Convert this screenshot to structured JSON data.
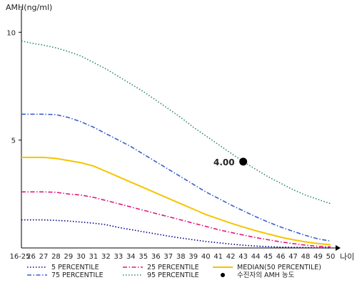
{
  "chart_data": {
    "type": "line",
    "ylabel": "AMH(ng/ml)",
    "xlabel": "나이",
    "categories": [
      "16-25",
      "26",
      "27",
      "28",
      "29",
      "30",
      "31",
      "32",
      "33",
      "34",
      "35",
      "36",
      "37",
      "38",
      "39",
      "40",
      "41",
      "42",
      "43",
      "44",
      "45",
      "46",
      "47",
      "48",
      "49",
      "50"
    ],
    "yticks": [
      5,
      10
    ],
    "ylim": [
      0,
      11
    ],
    "series": [
      {
        "name": "5 PERCENTILE",
        "color": "#00008b",
        "dash": "dot",
        "values": [
          1.3,
          1.3,
          1.3,
          1.28,
          1.25,
          1.2,
          1.15,
          1.08,
          0.95,
          0.85,
          0.75,
          0.65,
          0.55,
          0.46,
          0.38,
          0.3,
          0.24,
          0.18,
          0.13,
          0.09,
          0.06,
          0.04,
          0.03,
          0.02,
          0.01,
          0.0
        ]
      },
      {
        "name": "25 PERCENTILE",
        "color": "#e0197d",
        "dash": "dashdot",
        "values": [
          2.6,
          2.6,
          2.6,
          2.58,
          2.5,
          2.45,
          2.35,
          2.2,
          2.05,
          1.9,
          1.75,
          1.6,
          1.45,
          1.3,
          1.15,
          1.0,
          0.85,
          0.72,
          0.6,
          0.48,
          0.38,
          0.28,
          0.2,
          0.13,
          0.08,
          0.05
        ]
      },
      {
        "name": "MEDIAN(50 PERCENTILE)",
        "color": "#f5c400",
        "dash": "solid",
        "values": [
          4.2,
          4.2,
          4.2,
          4.15,
          4.05,
          3.95,
          3.8,
          3.55,
          3.3,
          3.05,
          2.8,
          2.55,
          2.3,
          2.05,
          1.8,
          1.55,
          1.35,
          1.15,
          0.97,
          0.8,
          0.65,
          0.5,
          0.38,
          0.28,
          0.2,
          0.15
        ]
      },
      {
        "name": "75 PERCENTILE",
        "color": "#3a5fcd",
        "dash": "dashdot",
        "values": [
          6.2,
          6.2,
          6.2,
          6.18,
          6.05,
          5.85,
          5.6,
          5.3,
          5.0,
          4.7,
          4.35,
          4.0,
          3.65,
          3.3,
          2.95,
          2.6,
          2.3,
          2.0,
          1.72,
          1.45,
          1.2,
          0.97,
          0.77,
          0.58,
          0.42,
          0.32
        ]
      },
      {
        "name": "95 PERCENTILE",
        "color": "#2e8b57",
        "dash": "dot",
        "values": [
          9.6,
          9.5,
          9.4,
          9.28,
          9.1,
          8.9,
          8.6,
          8.3,
          7.95,
          7.6,
          7.25,
          6.85,
          6.45,
          6.05,
          5.6,
          5.2,
          4.8,
          4.4,
          4.0,
          3.65,
          3.3,
          3.0,
          2.7,
          2.45,
          2.25,
          2.05
        ]
      }
    ],
    "point": {
      "name": "수진자의 AMH 농도",
      "x": "43",
      "y": 4.0,
      "label": "4.00",
      "color": "#000000"
    },
    "legend_position": "bottom",
    "grid": false
  }
}
